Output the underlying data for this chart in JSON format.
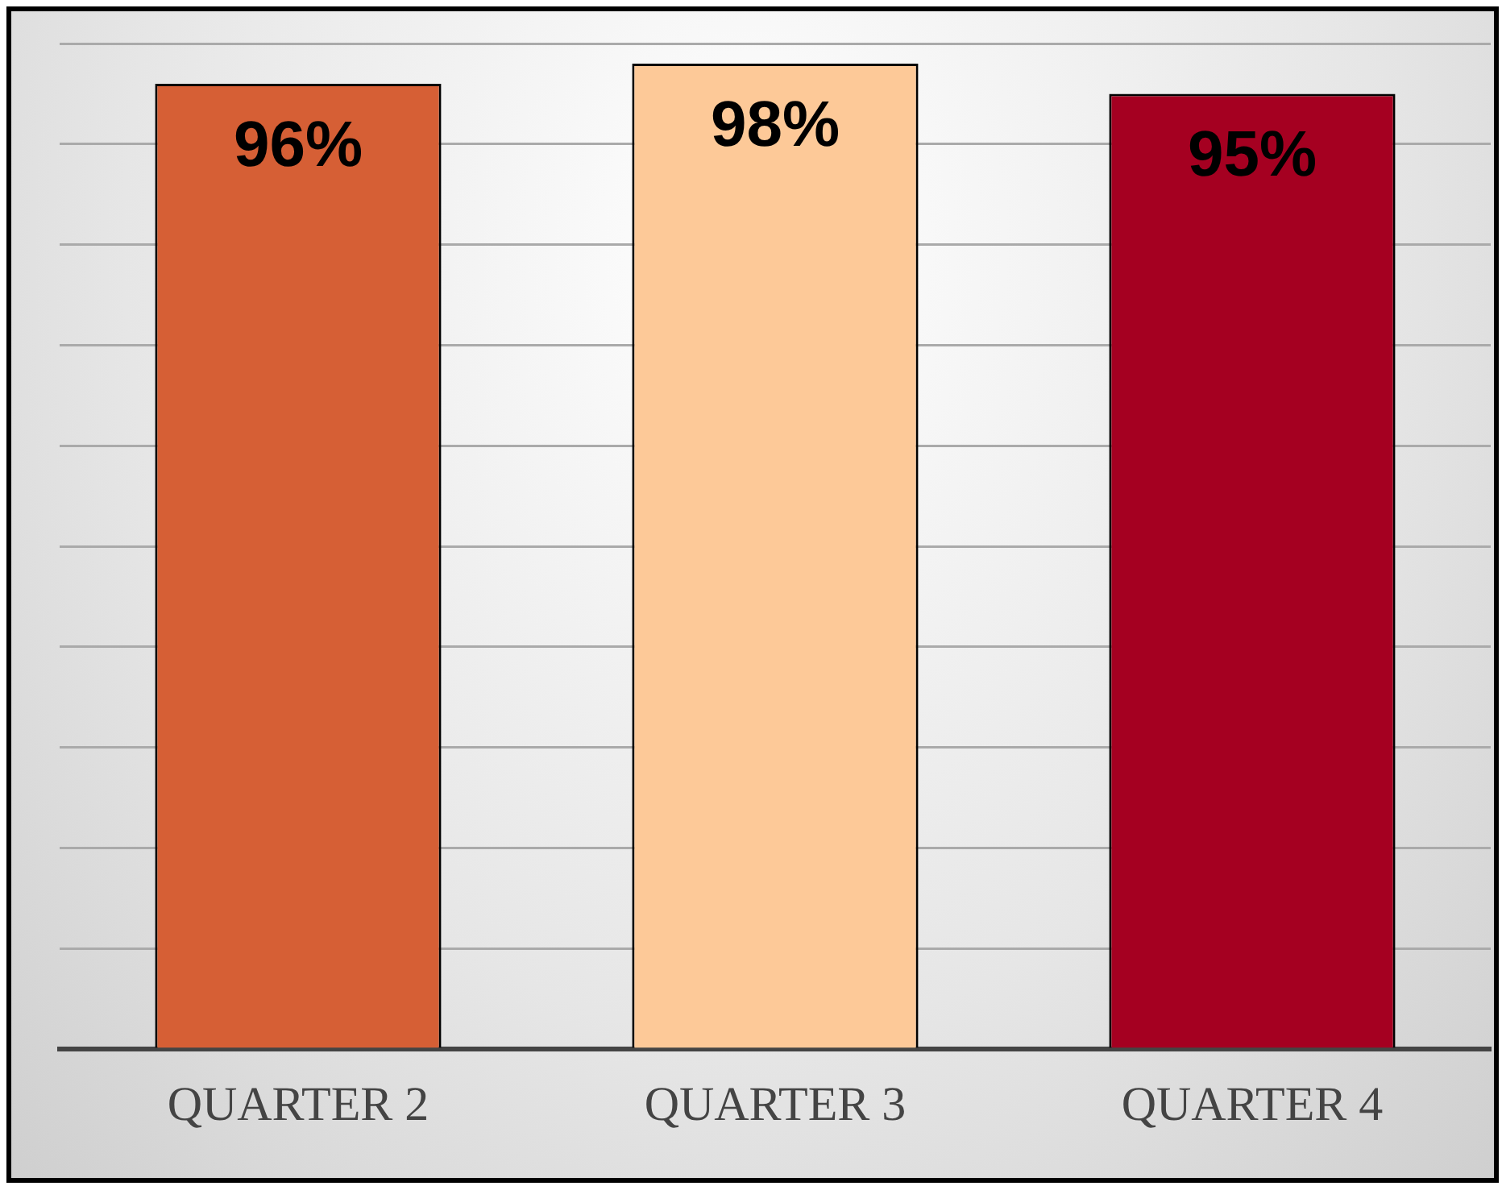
{
  "chart_data": {
    "type": "bar",
    "categories": [
      "QUARTER 2",
      "QUARTER 3",
      "QUARTER 4"
    ],
    "values": [
      96,
      98,
      95
    ],
    "colors": [
      "#d65f35",
      "#fdc998",
      "#a50021"
    ],
    "value_labels": [
      "96%",
      "98%",
      "95%"
    ],
    "ylim": [
      0,
      100
    ],
    "yticks": [
      {
        "value": 0,
        "label": null
      },
      {
        "value": 10,
        "label": null
      },
      {
        "value": 20,
        "label": null
      },
      {
        "value": 30,
        "label": null
      },
      {
        "value": 40,
        "label": null
      },
      {
        "value": 50,
        "label": null
      },
      {
        "value": 60,
        "label": null
      },
      {
        "value": 70,
        "label": null
      },
      {
        "value": 80,
        "label": null
      },
      {
        "value": 90,
        "label": null
      },
      {
        "value": 100,
        "label": null
      }
    ],
    "grid": "y",
    "legend": false,
    "tick_labels": "x"
  }
}
